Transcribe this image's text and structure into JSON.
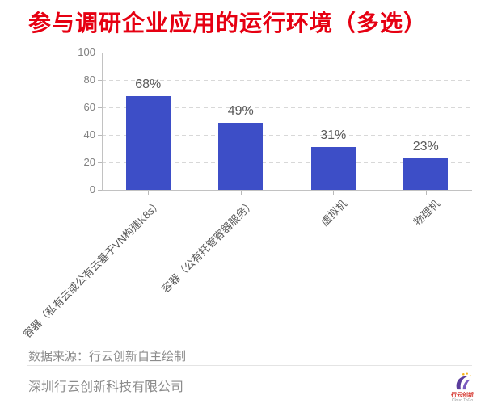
{
  "title": {
    "text": "参与调研企业应用的运行环境（多选）",
    "color": "#e60012"
  },
  "chart_data": {
    "type": "bar",
    "title": "参与调研企业应用的运行环境（多选）",
    "categories": [
      "容器（私有云或公有云基于VN构建K8s）",
      "容器（公有托管容器服务）",
      "虚拟机",
      "物理机"
    ],
    "values": [
      68,
      49,
      31,
      23
    ],
    "data_labels": [
      "68%",
      "49%",
      "31%",
      "23%"
    ],
    "ylim": [
      0,
      100
    ],
    "yticks": [
      0,
      20,
      40,
      60,
      80,
      100
    ],
    "xlabel": "",
    "ylabel": "",
    "grid": "horizontal-dashed",
    "legend": "none",
    "bar_color": "#3d4ec7",
    "label_color": "#595959",
    "tick_color": "#7f7f7f"
  },
  "footer": {
    "source": "数据来源：行云创新自主绘制",
    "company": "深圳行云创新科技有限公司",
    "logo": {
      "name": "行云创新",
      "tagline": "Cloud ToGo",
      "colors": {
        "swirl_purple": "#5a3d9c",
        "swirl_light": "#7a5bbf",
        "dot_yellow": "#f5b31a",
        "text_red": "#d5342c"
      }
    }
  }
}
